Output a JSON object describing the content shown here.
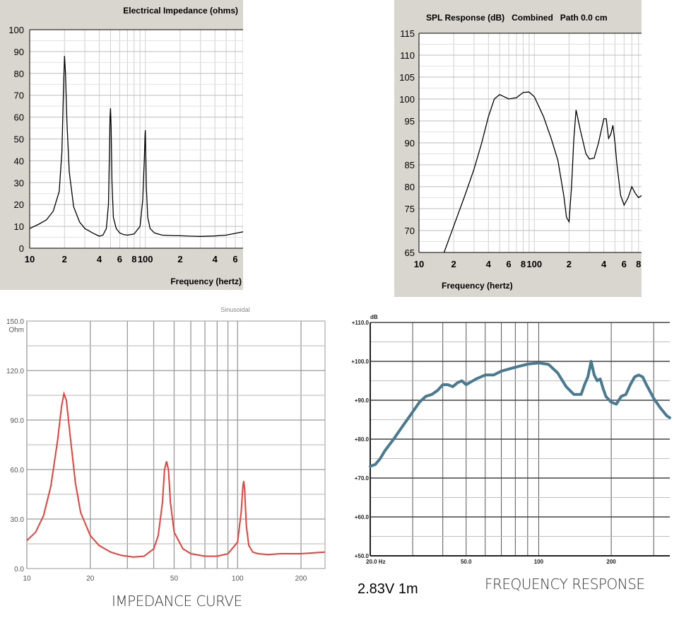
{
  "chart_data": [
    {
      "type": "line",
      "title": "Electrical Impedance (ohms)",
      "xlabel": "Frequency (hertz)",
      "ylabel": "",
      "xscale": "log",
      "xlim": [
        10,
        700
      ],
      "ylim": [
        0,
        100
      ],
      "yticks": [
        0,
        10,
        20,
        30,
        40,
        50,
        60,
        70,
        80,
        90,
        100
      ],
      "xticks": [
        {
          "v": 10,
          "label": "10"
        },
        {
          "v": 20,
          "label": "2"
        },
        {
          "v": 40,
          "label": "4"
        },
        {
          "v": 60,
          "label": "6"
        },
        {
          "v": 80,
          "label": "8"
        },
        {
          "v": 100,
          "label": "100"
        },
        {
          "v": 200,
          "label": "2"
        },
        {
          "v": 400,
          "label": "4"
        },
        {
          "v": 600,
          "label": "6"
        }
      ],
      "grid": true,
      "series": [
        {
          "x": [
            10,
            12,
            14,
            16,
            18,
            19,
            19.6,
            20,
            20.4,
            21,
            22,
            24,
            27,
            30,
            35,
            40,
            43,
            46,
            48,
            49,
            49.5,
            50,
            50.6,
            51.5,
            53,
            56,
            60,
            65,
            70,
            80,
            90,
            95,
            98,
            99.5,
            100,
            100.6,
            102,
            105,
            110,
            120,
            140,
            170,
            200,
            250,
            300,
            400,
            500,
            600,
            700
          ],
          "y": [
            9,
            11,
            13,
            17,
            26,
            44,
            72,
            88,
            80,
            58,
            35,
            19,
            12,
            9,
            7,
            5.5,
            6,
            9,
            20,
            45,
            60,
            64,
            55,
            30,
            14,
            9,
            7,
            6.2,
            6,
            6.5,
            10,
            22,
            40,
            52,
            54,
            47,
            28,
            14,
            9,
            7,
            6,
            5.8,
            5.7,
            5.5,
            5.4,
            5.6,
            6,
            6.8,
            7.5
          ]
        }
      ]
    },
    {
      "type": "line",
      "title": "SPL Response (dB)   Combined   Path 0.0 cm",
      "xlabel": "Frequency (hertz)",
      "ylabel": "",
      "xscale": "log",
      "xlim": [
        10,
        850
      ],
      "ylim": [
        65,
        115
      ],
      "yticks": [
        65,
        70,
        75,
        80,
        85,
        90,
        95,
        100,
        105,
        110,
        115
      ],
      "xticks": [
        {
          "v": 10,
          "label": "10"
        },
        {
          "v": 20,
          "label": "2"
        },
        {
          "v": 40,
          "label": "4"
        },
        {
          "v": 60,
          "label": "6"
        },
        {
          "v": 80,
          "label": "8"
        },
        {
          "v": 100,
          "label": "100"
        },
        {
          "v": 200,
          "label": "2"
        },
        {
          "v": 400,
          "label": "4"
        },
        {
          "v": 600,
          "label": "6"
        },
        {
          "v": 800,
          "label": "8"
        }
      ],
      "grid": true,
      "series": [
        {
          "x": [
            16.5,
            20,
            25,
            30,
            35,
            40,
            45,
            50,
            55,
            60,
            70,
            80,
            90,
            100,
            120,
            140,
            160,
            180,
            190,
            200,
            210,
            220,
            230,
            250,
            280,
            300,
            330,
            360,
            400,
            420,
            440,
            460,
            480,
            500,
            520,
            560,
            600,
            650,
            700,
            750,
            800,
            850
          ],
          "y": [
            65,
            71,
            78,
            84,
            90,
            96,
            100,
            101,
            100.5,
            100,
            100.3,
            101.5,
            101.6,
            100.5,
            96,
            91,
            86,
            78,
            73,
            72,
            80,
            91,
            97.5,
            93,
            87.5,
            86.3,
            86.5,
            90,
            95.5,
            95.5,
            91,
            92,
            94,
            90,
            85,
            78,
            75.8,
            77.5,
            80,
            78.5,
            77.5,
            78
          ]
        }
      ]
    },
    {
      "type": "line",
      "title": "Sinusoidal",
      "xlabel": "",
      "ylabel": "Ohm",
      "xscale": "log",
      "xlim": [
        10,
        260
      ],
      "ylim": [
        0,
        150
      ],
      "yticks": [
        {
          "v": 0,
          "label": "0.0"
        },
        {
          "v": 30,
          "label": "30.0"
        },
        {
          "v": 60,
          "label": "60.0"
        },
        {
          "v": 90,
          "label": "90.0"
        },
        {
          "v": 120,
          "label": "120.0"
        },
        {
          "v": 150,
          "label": "150.0"
        }
      ],
      "xticks": [
        {
          "v": 10,
          "label": "10"
        },
        {
          "v": 20,
          "label": "20"
        },
        {
          "v": 50,
          "label": "50"
        },
        {
          "v": 100,
          "label": "100"
        },
        {
          "v": 200,
          "label": "200"
        }
      ],
      "grid": true,
      "color": "#e8403a",
      "series": [
        {
          "x": [
            10,
            11,
            12,
            13,
            14,
            14.6,
            15,
            15.4,
            16,
            17,
            18,
            20,
            22,
            25,
            28,
            32,
            36,
            40,
            42,
            44,
            45,
            46,
            47,
            48,
            50,
            55,
            60,
            70,
            80,
            90,
            100,
            104,
            106,
            107,
            108,
            110,
            113,
            118,
            125,
            140,
            160,
            200,
            230,
            260
          ],
          "y": [
            17,
            22,
            32,
            50,
            78,
            98,
            106,
            102,
            82,
            52,
            34,
            20,
            14,
            10,
            8,
            7,
            7.5,
            12,
            20,
            40,
            60,
            65,
            60,
            40,
            22,
            12,
            9,
            7.5,
            7.5,
            9,
            16,
            34,
            50,
            53,
            48,
            26,
            14,
            10,
            9,
            8.5,
            9,
            9,
            9.5,
            10
          ]
        }
      ]
    },
    {
      "type": "line",
      "title": "",
      "xlabel": "",
      "ylabel": "dB",
      "xscale": "log",
      "xlim": [
        20,
        350
      ],
      "ylim": [
        50,
        110
      ],
      "yticks": [
        {
          "v": 50,
          "label": "+50.0"
        },
        {
          "v": 60,
          "label": "+60.0"
        },
        {
          "v": 70,
          "label": "+70.0"
        },
        {
          "v": 80,
          "label": "+80.0"
        },
        {
          "v": 90,
          "label": "+90.0"
        },
        {
          "v": 100,
          "label": "+100.0"
        },
        {
          "v": 110,
          "label": "+110.0"
        }
      ],
      "xticks": [
        {
          "v": 20,
          "label": "20.0 Hz"
        },
        {
          "v": 50,
          "label": "50.0"
        },
        {
          "v": 100,
          "label": "100"
        },
        {
          "v": 200,
          "label": "200"
        }
      ],
      "grid": true,
      "color": "#4a7a90",
      "series": [
        {
          "x": [
            20,
            21,
            22,
            23,
            25,
            27,
            30,
            32,
            34,
            36,
            38,
            40,
            42,
            44,
            46,
            48,
            50,
            55,
            60,
            65,
            70,
            80,
            90,
            100,
            110,
            120,
            130,
            140,
            150,
            155,
            160,
            165,
            170,
            175,
            180,
            185,
            190,
            200,
            210,
            220,
            230,
            240,
            250,
            260,
            270,
            280,
            300,
            320,
            340,
            350
          ],
          "y": [
            73,
            73.5,
            75,
            77,
            80,
            83,
            87,
            89.5,
            91,
            91.5,
            92.5,
            94,
            94,
            93.5,
            94.5,
            95,
            94,
            95.5,
            96.5,
            96.5,
            97.5,
            98.5,
            99.3,
            99.6,
            99.2,
            97,
            93.5,
            91.5,
            91.5,
            94,
            96,
            100,
            96.5,
            95,
            95.5,
            93,
            91,
            89.5,
            89,
            91,
            91.5,
            94,
            96,
            96.5,
            96,
            94,
            90.5,
            88,
            86,
            85.5
          ]
        }
      ]
    }
  ],
  "captions": {
    "impedance": "IMPEDANCE CURVE",
    "voltage": "2.83V 1m",
    "frequency": "FREQUENCY RESPONSE"
  }
}
